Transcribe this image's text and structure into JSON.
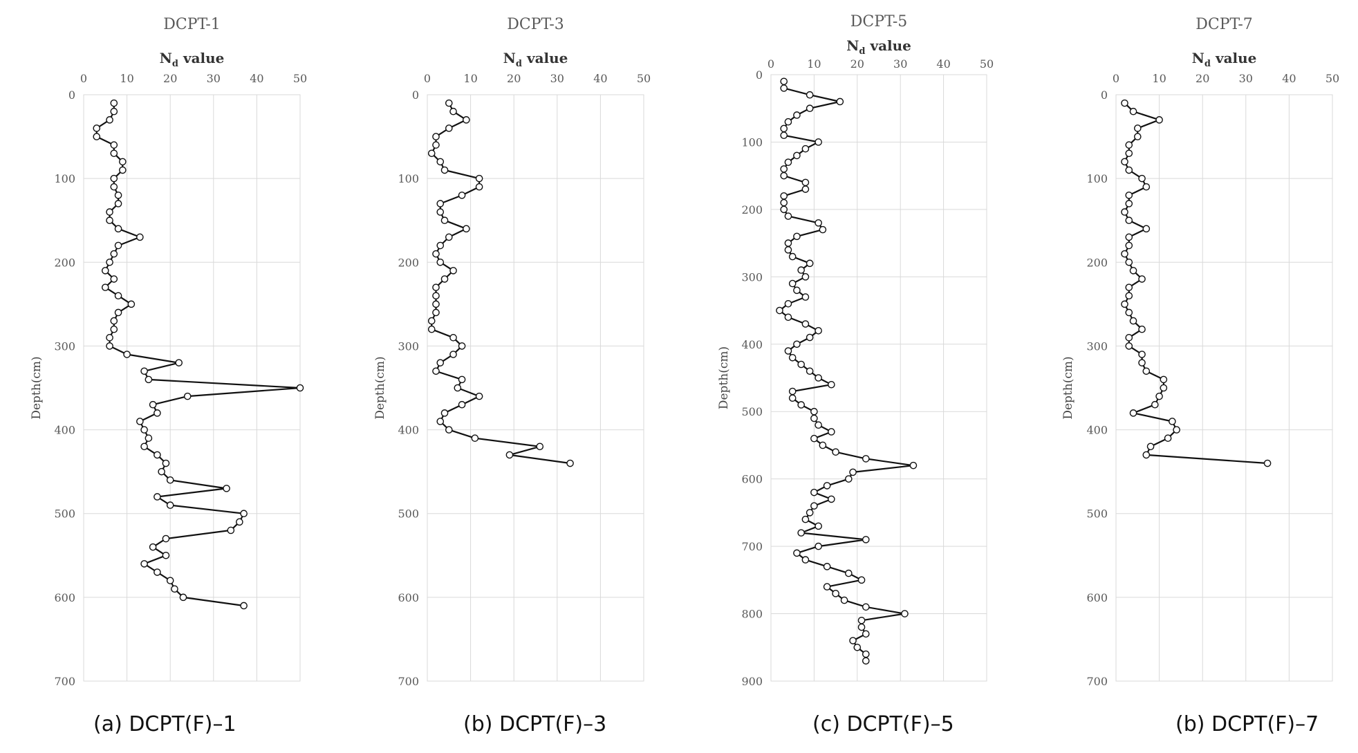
{
  "chart_data": [
    {
      "type": "line",
      "title": "DCPT-1",
      "xlabel_main": "N",
      "xlabel_sub": "d",
      "xlabel_rest": " value",
      "ylabel": "Depth(cm)",
      "xlim": [
        0,
        50
      ],
      "xticks": [
        0,
        10,
        20,
        30,
        40,
        50
      ],
      "ylim": [
        0,
        700
      ],
      "yticks": [
        0,
        100,
        200,
        300,
        400,
        500,
        600,
        700
      ],
      "y_inverted": true,
      "grid": true,
      "caption": "(a)  DCPT(F)–1",
      "series": [
        {
          "x": [
            7,
            7,
            6,
            3,
            3,
            7,
            7,
            9,
            9,
            7,
            7,
            8,
            8,
            6,
            6,
            8,
            13,
            8,
            7,
            6,
            5,
            7,
            5,
            8,
            11,
            8,
            7,
            7,
            6,
            6,
            10,
            22,
            14,
            15,
            50,
            24,
            16,
            17,
            13,
            14,
            15,
            14,
            17,
            19,
            18,
            20,
            33,
            17,
            20,
            37,
            36,
            34,
            19,
            16,
            19,
            14,
            17,
            20,
            21,
            23,
            37
          ],
          "y": [
            10,
            20,
            30,
            40,
            50,
            60,
            70,
            80,
            90,
            100,
            110,
            120,
            130,
            140,
            150,
            160,
            170,
            180,
            190,
            200,
            210,
            220,
            230,
            240,
            250,
            260,
            270,
            280,
            290,
            300,
            310,
            320,
            330,
            340,
            350,
            360,
            370,
            380,
            390,
            400,
            410,
            420,
            430,
            440,
            450,
            460,
            470,
            480,
            490,
            500,
            510,
            520,
            530,
            540,
            550,
            560,
            570,
            580,
            590,
            600,
            610
          ]
        }
      ]
    },
    {
      "type": "line",
      "title": "DCPT-3",
      "xlabel_main": "N",
      "xlabel_sub": "d",
      "xlabel_rest": " value",
      "ylabel": "Depth(cm)",
      "xlim": [
        0,
        50
      ],
      "xticks": [
        0,
        10,
        20,
        30,
        40,
        50
      ],
      "ylim": [
        0,
        700
      ],
      "yticks": [
        0,
        100,
        200,
        300,
        400,
        500,
        600,
        700
      ],
      "y_inverted": true,
      "grid": true,
      "caption": "(b)  DCPT(F)–3",
      "series": [
        {
          "x": [
            5,
            6,
            9,
            5,
            2,
            2,
            1,
            3,
            4,
            12,
            12,
            8,
            3,
            3,
            4,
            9,
            5,
            3,
            2,
            3,
            6,
            4,
            2,
            2,
            2,
            2,
            1,
            1,
            6,
            8,
            6,
            3,
            2,
            8,
            7,
            12,
            8,
            4,
            3,
            5,
            11,
            26,
            19,
            33
          ],
          "y": [
            10,
            20,
            30,
            40,
            50,
            60,
            70,
            80,
            90,
            100,
            110,
            120,
            130,
            140,
            150,
            160,
            170,
            180,
            190,
            200,
            210,
            220,
            230,
            240,
            250,
            260,
            270,
            280,
            290,
            300,
            310,
            320,
            330,
            340,
            350,
            360,
            370,
            380,
            390,
            400,
            410,
            420,
            430,
            440
          ]
        }
      ]
    },
    {
      "type": "line",
      "title": "DCPT-5",
      "xlabel_main": "N",
      "xlabel_sub": "d",
      "xlabel_rest": " value",
      "ylabel": "Depth(cm)",
      "xlim": [
        0,
        50
      ],
      "xticks": [
        0,
        10,
        20,
        30,
        40,
        50
      ],
      "ylim": [
        0,
        900
      ],
      "yticks": [
        0,
        100,
        200,
        300,
        400,
        500,
        600,
        700,
        800,
        900
      ],
      "y_inverted": true,
      "grid": true,
      "caption": "(c)  DCPT(F)–5",
      "series": [
        {
          "x": [
            3,
            3,
            9,
            16,
            9,
            6,
            4,
            3,
            3,
            11,
            8,
            6,
            4,
            3,
            3,
            8,
            8,
            3,
            3,
            3,
            4,
            11,
            12,
            6,
            4,
            4,
            5,
            9,
            7,
            8,
            5,
            6,
            8,
            4,
            2,
            4,
            8,
            11,
            9,
            6,
            4,
            5,
            7,
            9,
            11,
            14,
            5,
            5,
            7,
            10,
            10,
            11,
            14,
            10,
            12,
            15,
            22,
            33,
            19,
            18,
            13,
            10,
            14,
            10,
            9,
            8,
            11,
            7,
            22,
            11,
            6,
            8,
            13,
            18,
            21,
            13,
            15,
            17,
            22,
            31,
            21,
            21,
            22,
            19,
            20,
            22,
            22
          ],
          "y": [
            10,
            20,
            30,
            40,
            50,
            60,
            70,
            80,
            90,
            100,
            110,
            120,
            130,
            140,
            150,
            160,
            170,
            180,
            190,
            200,
            210,
            220,
            230,
            240,
            250,
            260,
            270,
            280,
            290,
            300,
            310,
            320,
            330,
            340,
            350,
            360,
            370,
            380,
            390,
            400,
            410,
            420,
            430,
            440,
            450,
            460,
            470,
            480,
            490,
            500,
            510,
            520,
            530,
            540,
            550,
            560,
            570,
            580,
            590,
            600,
            610,
            620,
            630,
            640,
            650,
            660,
            670,
            680,
            690,
            700,
            710,
            720,
            730,
            740,
            750,
            760,
            770,
            780,
            790,
            800,
            810,
            820,
            830,
            840,
            850,
            860,
            870
          ]
        }
      ]
    },
    {
      "type": "line",
      "title": "DCPT-7",
      "xlabel_main": "N",
      "xlabel_sub": "d",
      "xlabel_rest": " value",
      "ylabel": "Depth(cm)",
      "xlim": [
        0,
        50
      ],
      "xticks": [
        0,
        10,
        20,
        30,
        40,
        50
      ],
      "ylim": [
        0,
        700
      ],
      "yticks": [
        0,
        100,
        200,
        300,
        400,
        500,
        600,
        700
      ],
      "y_inverted": true,
      "grid": true,
      "caption": "(b)  DCPT(F)–7",
      "series": [
        {
          "x": [
            2,
            4,
            10,
            5,
            5,
            3,
            3,
            2,
            3,
            6,
            7,
            3,
            3,
            2,
            3,
            7,
            3,
            3,
            2,
            3,
            4,
            6,
            3,
            3,
            2,
            3,
            4,
            6,
            3,
            3,
            6,
            6,
            7,
            11,
            11,
            10,
            9,
            4,
            13,
            14,
            12,
            8,
            7,
            35
          ],
          "y": [
            10,
            20,
            30,
            40,
            50,
            60,
            70,
            80,
            90,
            100,
            110,
            120,
            130,
            140,
            150,
            160,
            170,
            180,
            190,
            200,
            210,
            220,
            230,
            240,
            250,
            260,
            270,
            280,
            290,
            300,
            310,
            320,
            330,
            340,
            350,
            360,
            370,
            380,
            390,
            400,
            410,
            420,
            430,
            440
          ]
        }
      ]
    }
  ]
}
